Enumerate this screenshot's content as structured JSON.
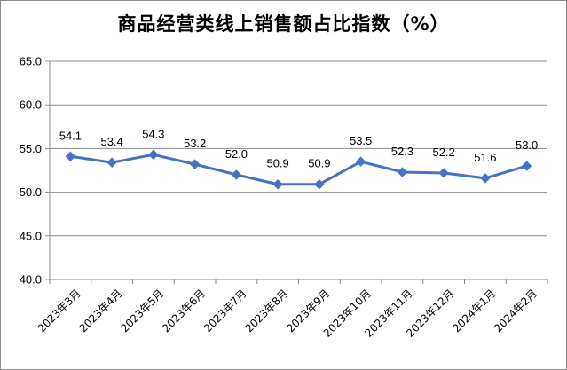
{
  "chart_data": {
    "type": "line",
    "title": "商品经营类线上销售额占比指数（%）",
    "xlabel": "",
    "ylabel": "",
    "categories": [
      "2023年3月",
      "2023年4月",
      "2023年5月",
      "2023年6月",
      "2023年7月",
      "2023年8月",
      "2023年9月",
      "2023年10月",
      "2023年11月",
      "2023年12月",
      "2024年1月",
      "2024年2月"
    ],
    "series": [
      {
        "values": [
          54.1,
          53.4,
          54.3,
          53.2,
          52.0,
          50.9,
          50.9,
          53.5,
          52.3,
          52.2,
          51.6,
          53.0
        ]
      }
    ],
    "data_labels": [
      "54.1",
      "53.4",
      "54.3",
      "53.2",
      "52.0",
      "50.9",
      "50.9",
      "53.5",
      "52.3",
      "52.2",
      "51.6",
      "53.0"
    ],
    "ylim": [
      40.0,
      65.0
    ],
    "yticks": [
      "40.0",
      "45.0",
      "50.0",
      "55.0",
      "60.0",
      "65.0"
    ],
    "grid": true,
    "legend": "none",
    "line_color": "#4472c4",
    "marker": "diamond"
  }
}
